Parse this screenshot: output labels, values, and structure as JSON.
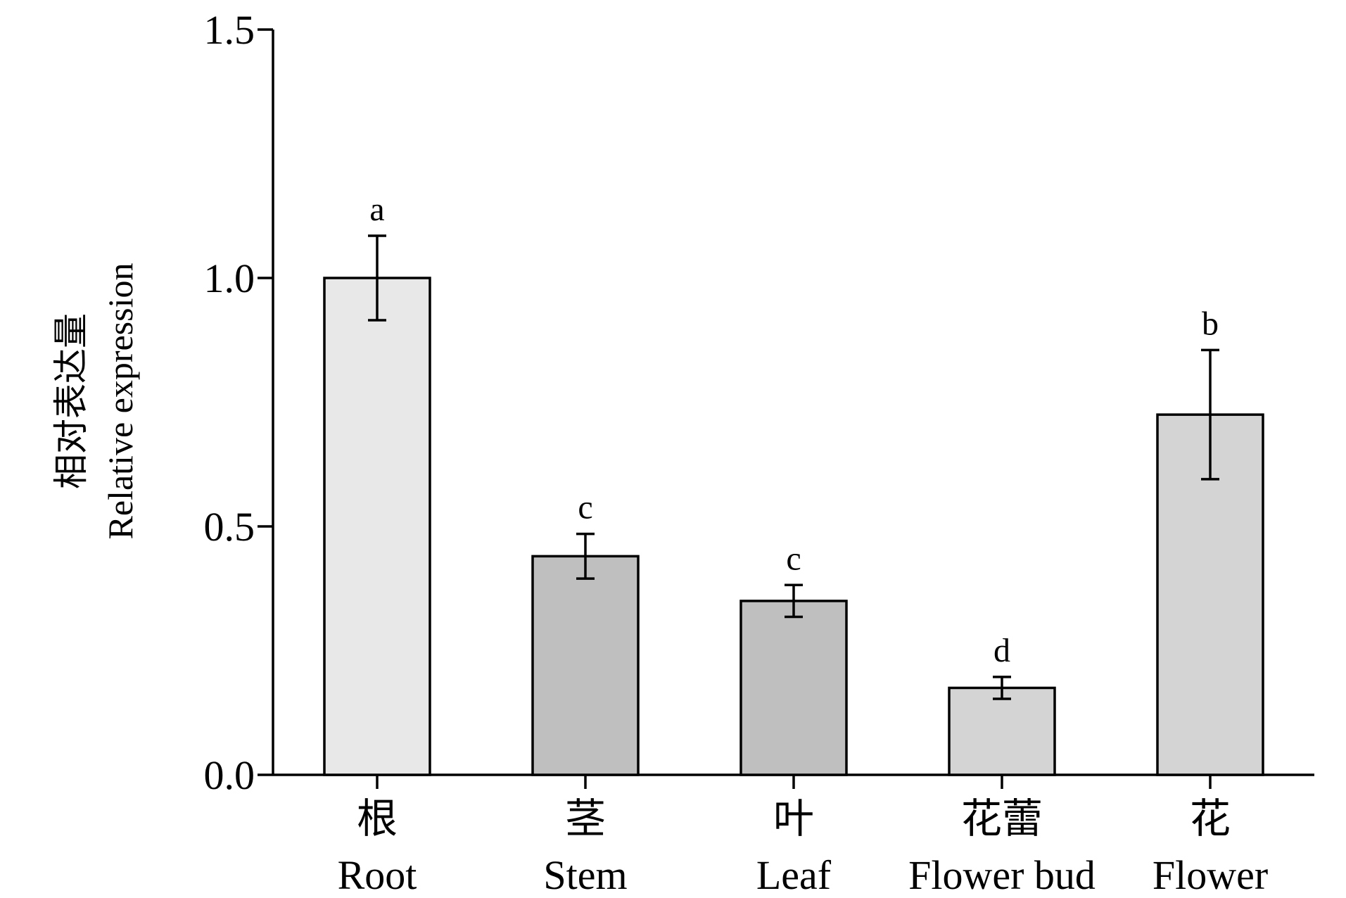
{
  "chart_data": {
    "type": "bar",
    "categories": [
      {
        "zh": "根",
        "en": "Root"
      },
      {
        "zh": "茎",
        "en": "Stem"
      },
      {
        "zh": "叶",
        "en": "Leaf"
      },
      {
        "zh": "花蕾",
        "en": "Flower bud"
      },
      {
        "zh": "花",
        "en": "Flower"
      }
    ],
    "values": [
      1.0,
      0.44,
      0.35,
      0.175,
      0.725
    ],
    "errors": [
      0.085,
      0.045,
      0.032,
      0.022,
      0.13
    ],
    "significance": [
      "a",
      "c",
      "c",
      "d",
      "b"
    ],
    "bar_colors": [
      "#e8e8e8",
      "#bfbfbf",
      "#bfbfbf",
      "#d4d4d4",
      "#d4d4d4"
    ],
    "ylabel_zh": "相对表达量",
    "ylabel_en": "Relative expression",
    "ylim": [
      0,
      1.5
    ],
    "yticks": [
      "0.0",
      "0.5",
      "1.0",
      "1.5"
    ],
    "grid": false
  }
}
